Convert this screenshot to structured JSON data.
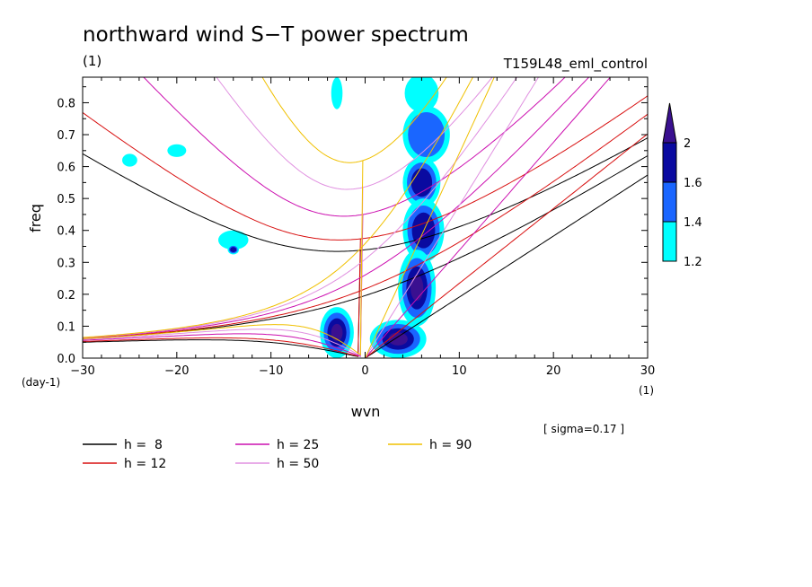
{
  "chart_data": {
    "type": "contour",
    "title": "northward wind S−T power spectrum",
    "subtitle_left": "(1)",
    "subtitle_right": "T159L48_eml_control",
    "xlabel": "wvn",
    "ylabel": "freq",
    "x_unit": "(1)",
    "y_unit": "(day-1)",
    "xlim": [
      -30,
      30
    ],
    "ylim": [
      0,
      0.88
    ],
    "x_ticks": [
      -30,
      -20,
      -10,
      0,
      10,
      20,
      30
    ],
    "x_tick_labels": [
      "−30",
      "−20",
      "−10",
      "0",
      "10",
      "20",
      "30"
    ],
    "y_ticks": [
      0,
      0.1,
      0.2,
      0.3,
      0.4,
      0.5,
      0.6,
      0.7,
      0.8
    ],
    "y_tick_labels": [
      "0.0",
      "0.1",
      "0.2",
      "0.3",
      "0.4",
      "0.5",
      "0.6",
      "0.7",
      "0.8"
    ],
    "note": "[ sigma=0.17 ]",
    "colorbar": {
      "levels": [
        1.2,
        1.4,
        1.6,
        2.0
      ],
      "level_labels": [
        "1.2",
        "1.4",
        "1.6",
        "2"
      ],
      "colors": [
        "#00ffff",
        "#1a66ff",
        "#0a0aa0",
        "#3a1090"
      ]
    },
    "dispersion_curves": [
      {
        "h": 8,
        "label": "h =  8",
        "color": "#000000"
      },
      {
        "h": 12,
        "label": "h = 12",
        "color": "#d81010"
      },
      {
        "h": 25,
        "label": "h = 25",
        "color": "#cc10b0"
      },
      {
        "h": 50,
        "label": "h = 50",
        "color": "#e090e0"
      },
      {
        "h": 90,
        "label": "h = 90",
        "color": "#f0c000"
      }
    ],
    "signal_blobs": [
      {
        "x": 6,
        "y": 0.83,
        "level": 1.2,
        "rx": 1.8,
        "ry": 0.06
      },
      {
        "x": 6.5,
        "y": 0.7,
        "level": 1.4,
        "rx": 2.5,
        "ry": 0.09
      },
      {
        "x": 6,
        "y": 0.55,
        "level": 1.6,
        "rx": 2.0,
        "ry": 0.08
      },
      {
        "x": 6.2,
        "y": 0.4,
        "level": 1.6,
        "rx": 2.2,
        "ry": 0.1
      },
      {
        "x": 5.5,
        "y": 0.22,
        "level": 2.0,
        "rx": 2.0,
        "ry": 0.12
      },
      {
        "x": 3.5,
        "y": 0.06,
        "level": 2.0,
        "rx": 3.0,
        "ry": 0.06
      },
      {
        "x": -3,
        "y": 0.08,
        "level": 2.0,
        "rx": 1.8,
        "ry": 0.08
      },
      {
        "x": -14,
        "y": 0.37,
        "level": 1.2,
        "rx": 1.6,
        "ry": 0.03
      },
      {
        "x": -14,
        "y": 0.34,
        "level": 1.6,
        "rx": 0.6,
        "ry": 0.015
      },
      {
        "x": -20,
        "y": 0.65,
        "level": 1.2,
        "rx": 1.0,
        "ry": 0.02
      },
      {
        "x": -25,
        "y": 0.62,
        "level": 1.2,
        "rx": 0.8,
        "ry": 0.02
      },
      {
        "x": -3,
        "y": 0.83,
        "level": 1.2,
        "rx": 0.6,
        "ry": 0.05
      }
    ]
  }
}
